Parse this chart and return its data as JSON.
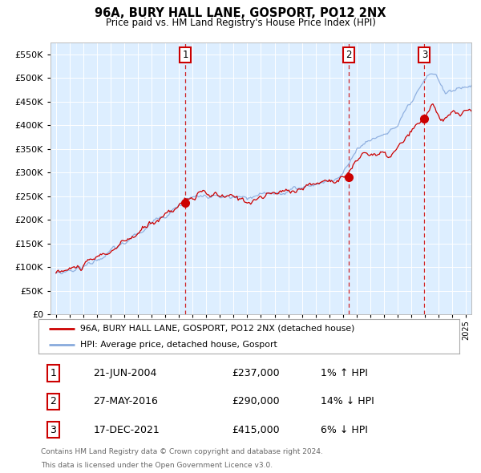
{
  "title1": "96A, BURY HALL LANE, GOSPORT, PO12 2NX",
  "title2": "Price paid vs. HM Land Registry's House Price Index (HPI)",
  "sales": [
    {
      "date_num": 2004.47,
      "price": 237000,
      "label": "1"
    },
    {
      "date_num": 2016.41,
      "price": 290000,
      "label": "2"
    },
    {
      "date_num": 2021.96,
      "price": 415000,
      "label": "3"
    }
  ],
  "legend_entries": [
    {
      "label": "96A, BURY HALL LANE, GOSPORT, PO12 2NX (detached house)",
      "color": "#cc0000"
    },
    {
      "label": "HPI: Average price, detached house, Gosport",
      "color": "#88aadd"
    }
  ],
  "table_rows": [
    {
      "num": "1",
      "date": "21-JUN-2004",
      "price": "£237,000",
      "hpi": "1% ↑ HPI"
    },
    {
      "num": "2",
      "date": "27-MAY-2016",
      "price": "£290,000",
      "hpi": "14% ↓ HPI"
    },
    {
      "num": "3",
      "date": "17-DEC-2021",
      "price": "£415,000",
      "hpi": "6% ↓ HPI"
    }
  ],
  "footnote1": "Contains HM Land Registry data © Crown copyright and database right 2024.",
  "footnote2": "This data is licensed under the Open Government Licence v3.0.",
  "ylim": [
    0,
    575000
  ],
  "yticks": [
    0,
    50000,
    100000,
    150000,
    200000,
    250000,
    300000,
    350000,
    400000,
    450000,
    500000,
    550000
  ],
  "xlim_start": 1994.6,
  "xlim_end": 2025.4,
  "plot_bg": "#ddeeff",
  "grid_color": "#ffffff",
  "sale_line_color": "#cc0000",
  "hpi_line_color": "#88aadd",
  "sale_dot_color": "#cc0000",
  "vline_color": "#cc0000",
  "label_box_color": "#cc0000"
}
